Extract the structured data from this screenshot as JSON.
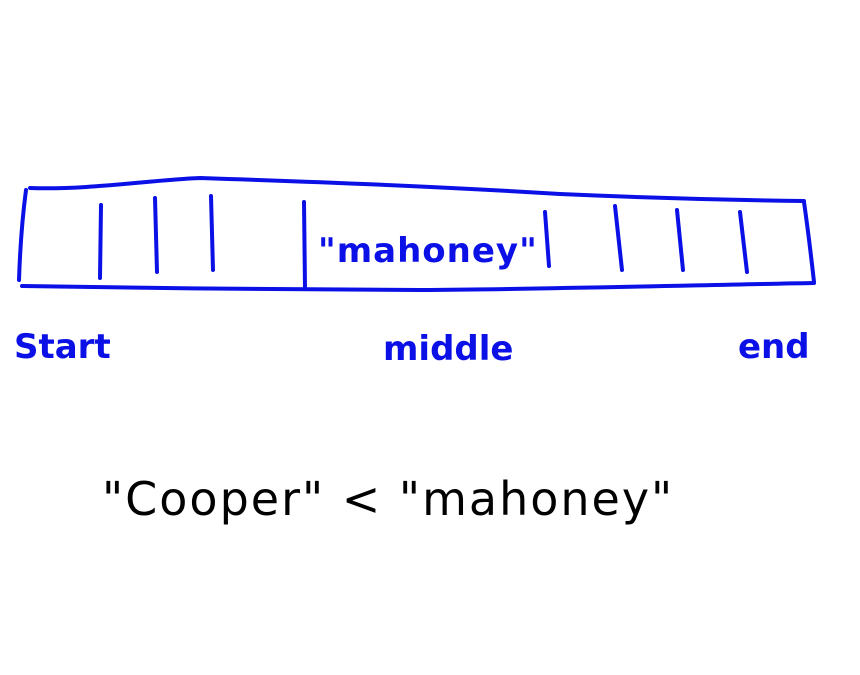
{
  "array": {
    "highlighted_value": "\"mahoney\"",
    "color": "#0a10e6"
  },
  "labels": {
    "start": "Start",
    "middle": "middle",
    "end": "end"
  },
  "comparison": {
    "text": "\"Cooper\" < \"mahoney\"",
    "color": "#000000"
  }
}
